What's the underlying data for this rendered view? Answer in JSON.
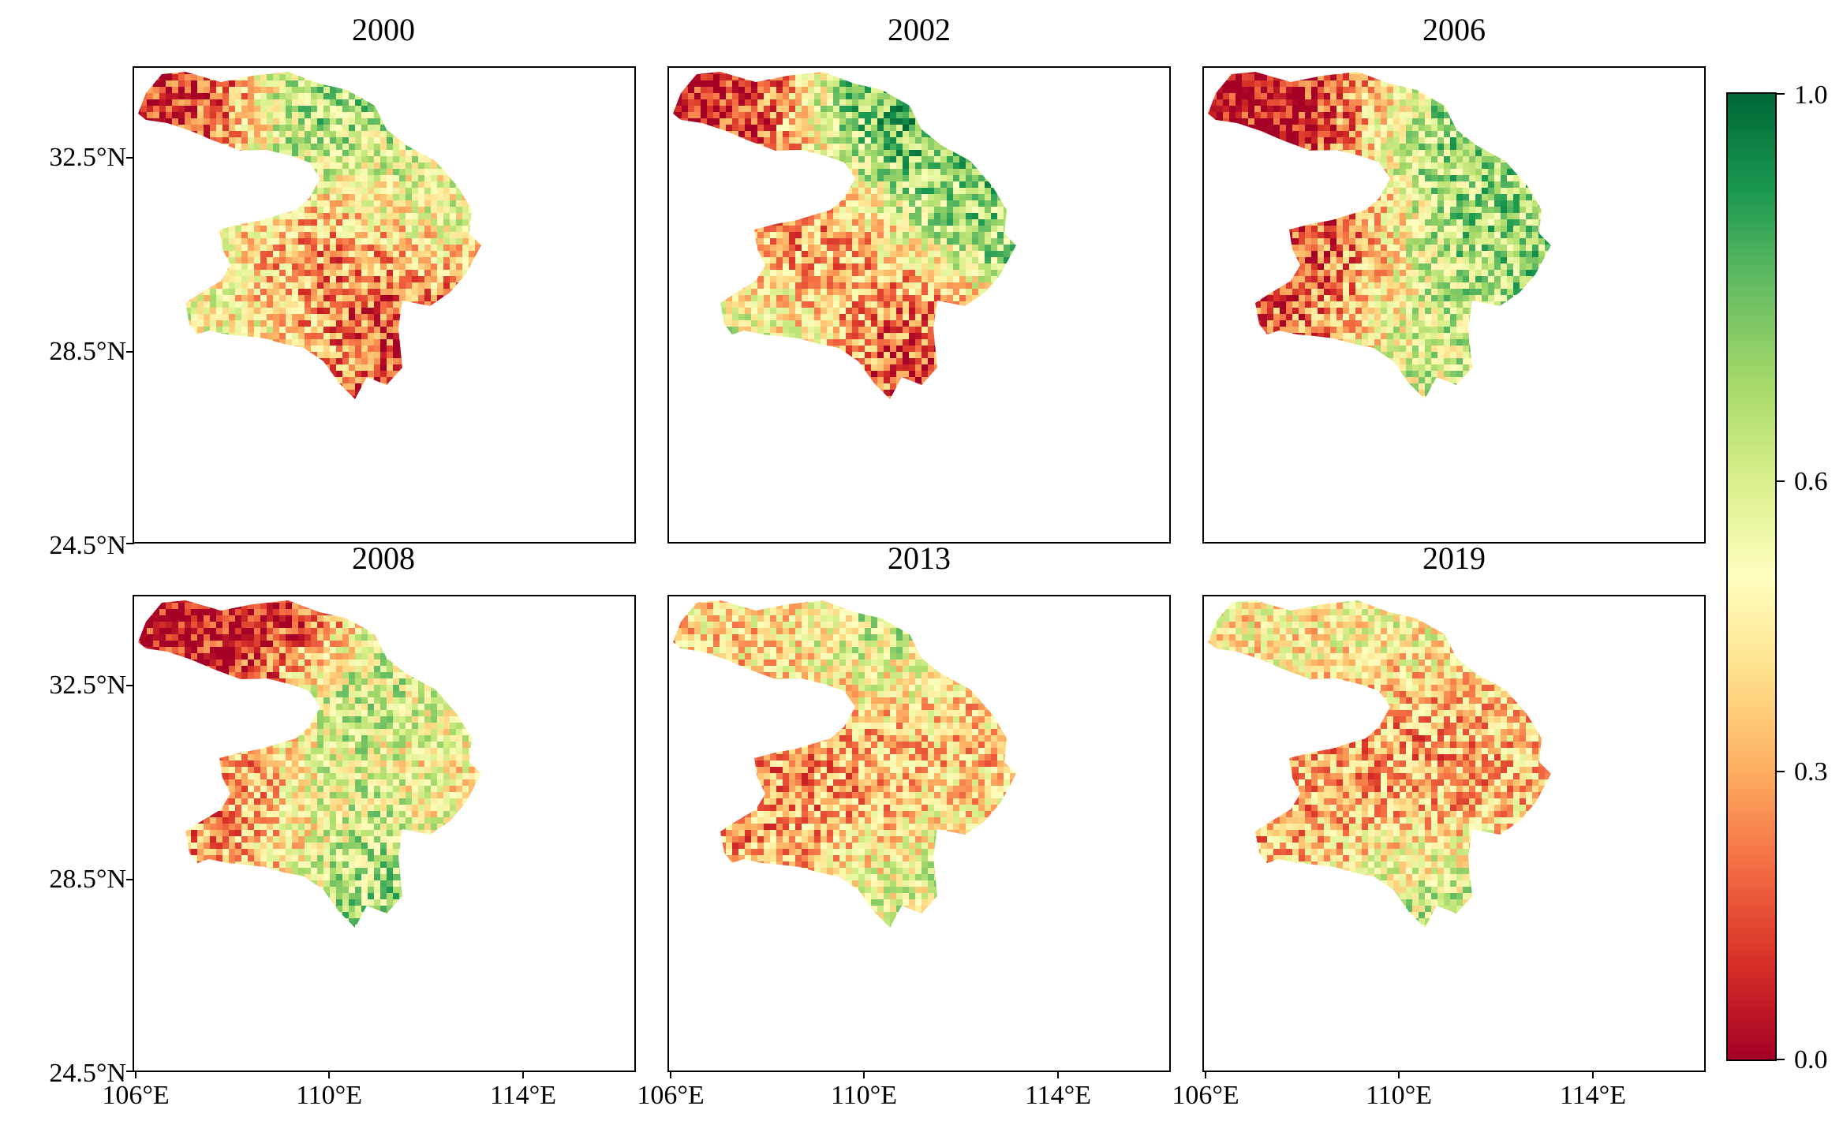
{
  "panels": [
    {
      "title": "2000"
    },
    {
      "title": "2002"
    },
    {
      "title": "2006"
    },
    {
      "title": "2008"
    },
    {
      "title": "2013"
    },
    {
      "title": "2019"
    }
  ],
  "axes": {
    "y_ticks": [
      "32.5°N",
      "28.5°N",
      "24.5°N"
    ],
    "x_ticks": [
      "106°E",
      "110°E",
      "114°E"
    ]
  },
  "colorbar": {
    "labels": [
      "1.0",
      "0.6",
      "0.3",
      "0.0"
    ],
    "colors": [
      "#a50026",
      "#d73027",
      "#f46d43",
      "#fdae61",
      "#fee08b",
      "#ffffbf",
      "#d9ef8b",
      "#a6d96a",
      "#66bd63",
      "#1a9850",
      "#006837"
    ]
  }
}
